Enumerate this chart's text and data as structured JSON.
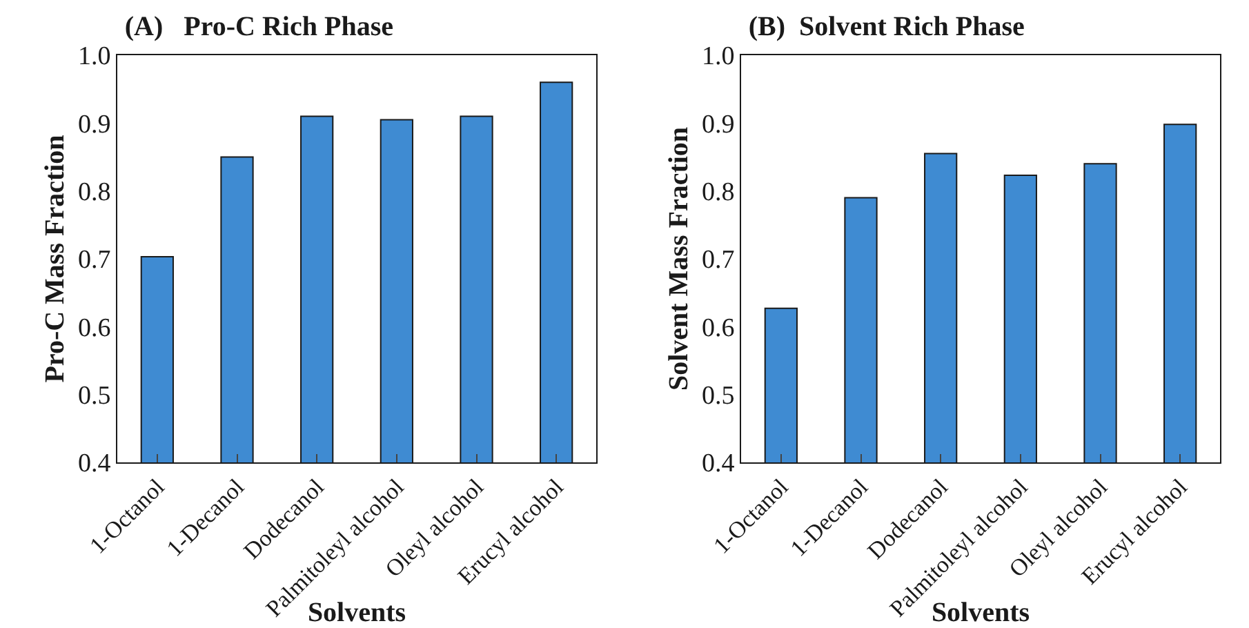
{
  "chart_data": [
    {
      "type": "bar",
      "title": "(A)   Pro-C Rich Phase",
      "xlabel": "Solvents",
      "ylabel": "Pro-C Mass Fraction",
      "categories": [
        "1-Octanol",
        "1-Decanol",
        "Dodecanol",
        "Palmitoleyl alcohol",
        "Oleyl alcohol",
        "Erucyl alcohol"
      ],
      "values": [
        0.703,
        0.85,
        0.91,
        0.905,
        0.91,
        0.96
      ],
      "color": "#3f8bd2",
      "ylim": [
        0.4,
        1.0
      ],
      "yticks": [
        0.4,
        0.5,
        0.6,
        0.7,
        0.8,
        0.9,
        {
          "value": 1.0,
          "label": "1.0"
        }
      ],
      "grid": false
    },
    {
      "type": "bar",
      "title": "(B)  Solvent Rich Phase",
      "xlabel": "Solvents",
      "ylabel": "Solvent Mass Fraction",
      "categories": [
        "1-Octanol",
        "1-Decanol",
        "Dodecanol",
        "Palmitoleyl alcohol",
        "Oleyl alcohol",
        "Erucyl alcohol"
      ],
      "values": [
        0.627,
        0.79,
        0.855,
        0.823,
        0.84,
        0.898
      ],
      "color": "#3f8bd2",
      "ylim": [
        0.4,
        1.0
      ],
      "yticks": [
        0.4,
        0.5,
        0.6,
        0.7,
        0.8,
        0.9,
        {
          "value": 1.0,
          "label": "1.0"
        }
      ],
      "grid": false
    }
  ]
}
